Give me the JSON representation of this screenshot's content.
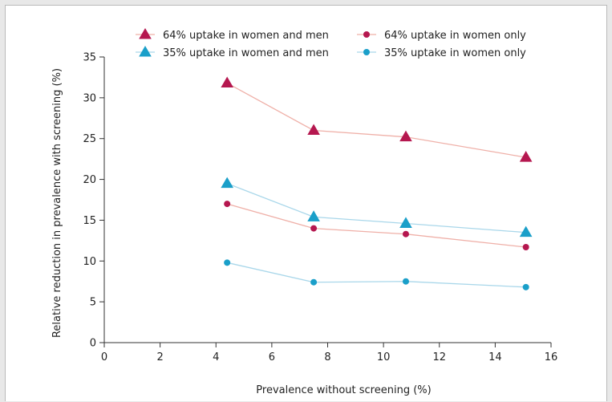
{
  "chart_data": {
    "type": "line",
    "title": "",
    "xlabel": "Prevalence without screening (%)",
    "ylabel": "Relative reduction in prevalence with screening (%)",
    "xlim": [
      0,
      16
    ],
    "ylim": [
      0,
      35
    ],
    "x_ticks": [
      0,
      2,
      4,
      6,
      8,
      10,
      12,
      14,
      16
    ],
    "y_ticks": [
      0,
      5,
      10,
      15,
      20,
      25,
      30,
      35
    ],
    "x": [
      4.4,
      7.5,
      10.8,
      15.1
    ],
    "grid": false,
    "legend_position": "top",
    "series": [
      {
        "name": "64% uptake in women and men",
        "marker": "triangle",
        "color": "#b5174f",
        "line_color": "#efb0a8",
        "values": [
          31.8,
          26.0,
          25.2,
          22.7
        ]
      },
      {
        "name": "35% uptake in women and men",
        "marker": "triangle",
        "color": "#1a9fc9",
        "line_color": "#a9d7ea",
        "values": [
          19.5,
          15.4,
          14.6,
          13.5
        ]
      },
      {
        "name": "64% uptake in women only",
        "marker": "circle",
        "color": "#b5174f",
        "line_color": "#efb0a8",
        "values": [
          17.0,
          14.0,
          13.3,
          11.7
        ]
      },
      {
        "name": "35% uptake in women only",
        "marker": "circle",
        "color": "#1a9fc9",
        "line_color": "#a9d7ea",
        "values": [
          9.8,
          7.4,
          7.5,
          6.8
        ]
      }
    ]
  }
}
